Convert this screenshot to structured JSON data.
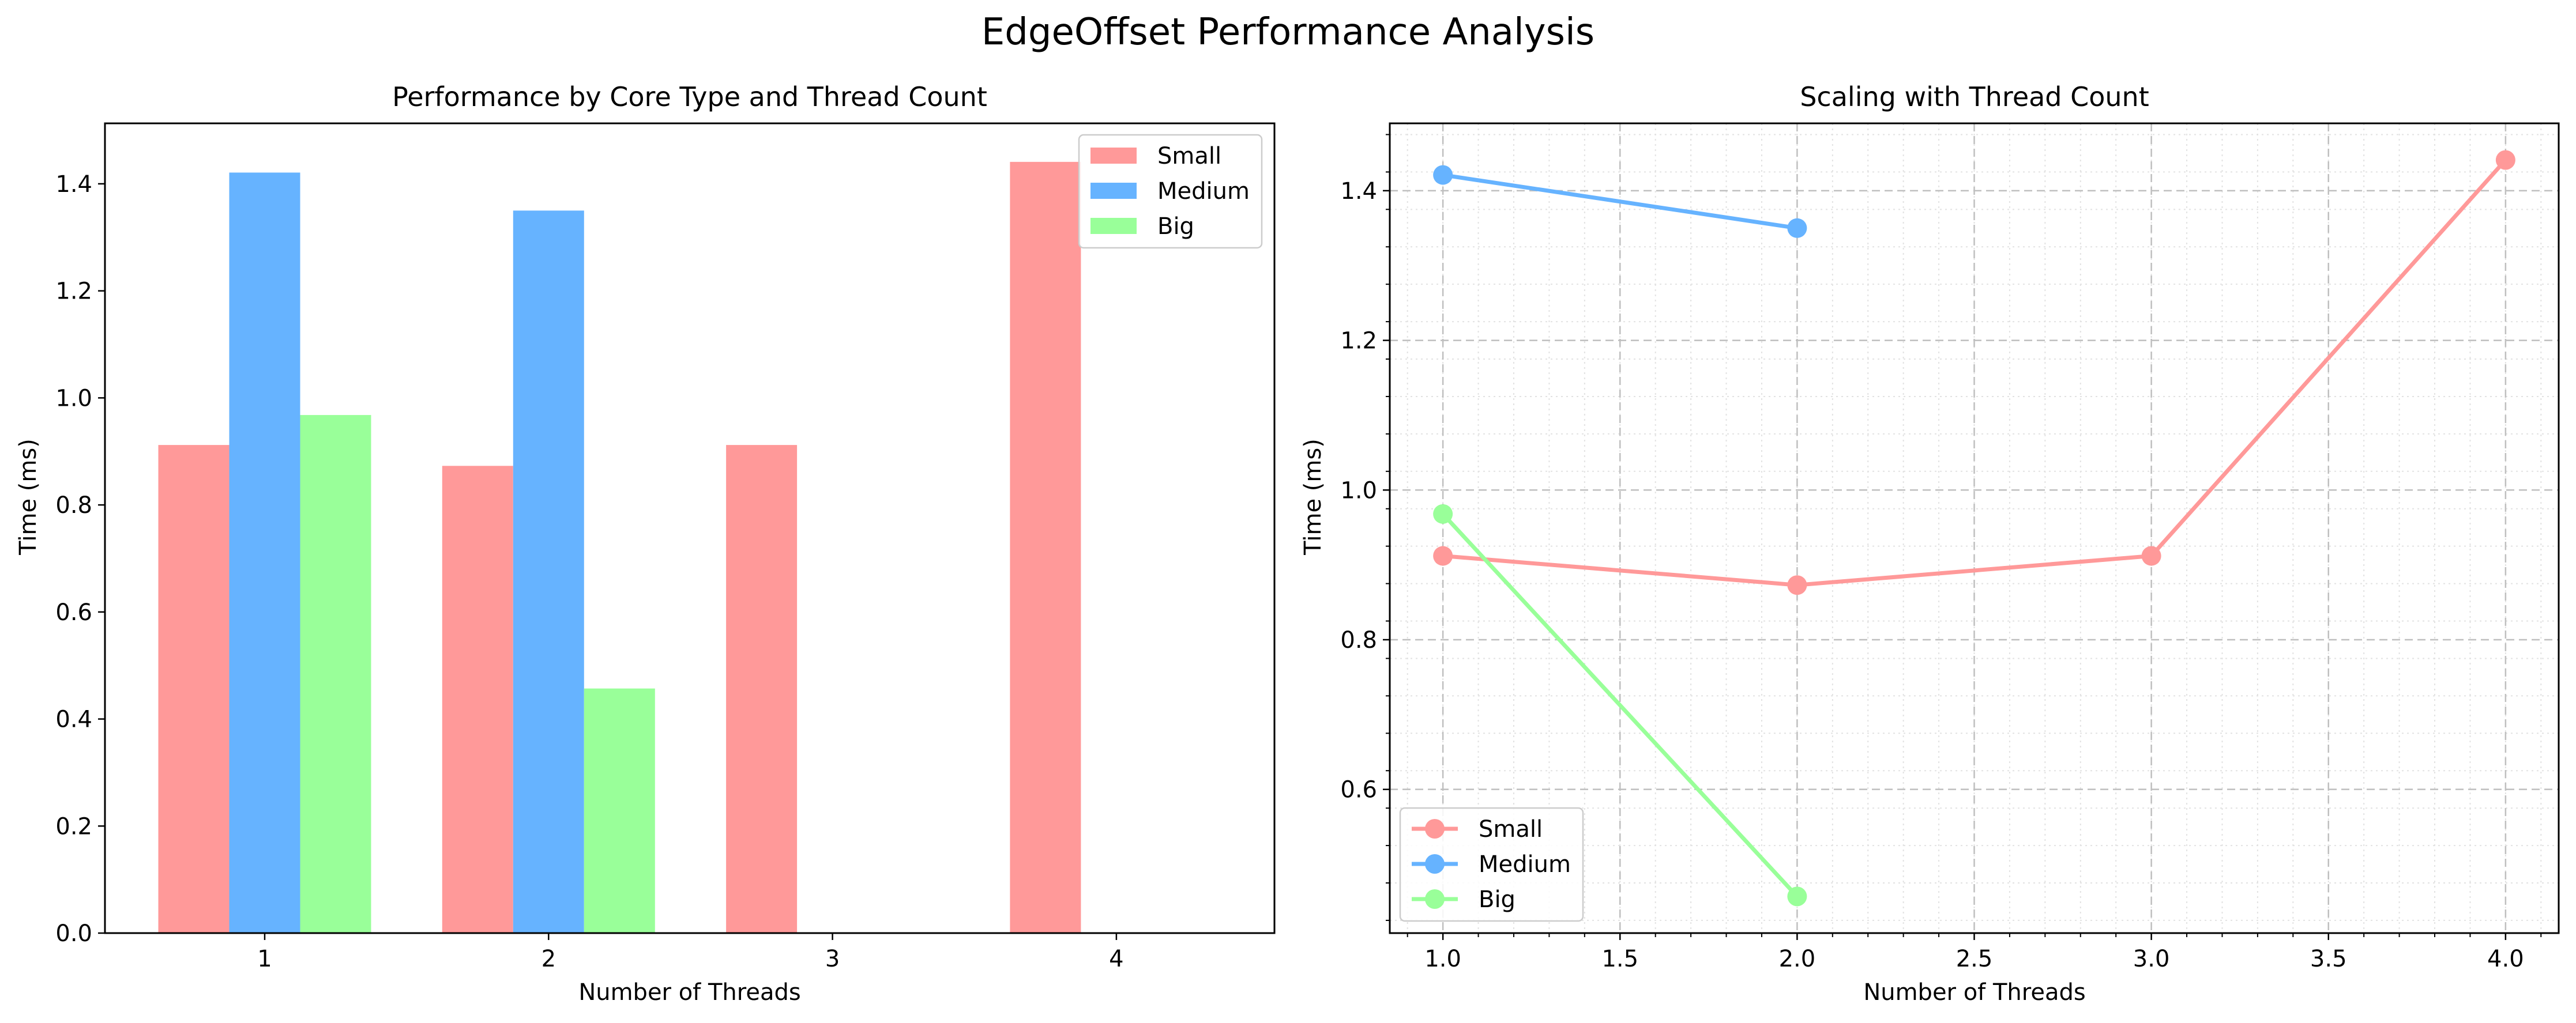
{
  "figure": {
    "title": "EdgeOffset Performance Analysis"
  },
  "chart_data": [
    {
      "type": "bar",
      "title": "Performance by Core Type and Thread Count",
      "xlabel": "Number of Threads",
      "ylabel": "Time (ms)",
      "categories": [
        "1",
        "2",
        "3",
        "4"
      ],
      "series": [
        {
          "name": "Small",
          "color": "#ff9999",
          "values": [
            0.912,
            0.873,
            0.912,
            1.441
          ]
        },
        {
          "name": "Medium",
          "color": "#66b3ff",
          "values": [
            1.421,
            1.35,
            null,
            null
          ]
        },
        {
          "name": "Big",
          "color": "#99ff99",
          "values": [
            0.968,
            0.457,
            null,
            null
          ]
        }
      ],
      "ylim": [
        0,
        1.513
      ],
      "yticks": [
        "0.0",
        "0.2",
        "0.4",
        "0.6",
        "0.8",
        "1.0",
        "1.2",
        "1.4"
      ],
      "grid": false,
      "legend_position": "upper right"
    },
    {
      "type": "line",
      "title": "Scaling with Thread Count",
      "xlabel": "Number of Threads",
      "ylabel": "Time (ms)",
      "series": [
        {
          "name": "Small",
          "color": "#ff9999",
          "x": [
            1,
            2,
            3,
            4
          ],
          "y": [
            0.912,
            0.873,
            0.912,
            1.441
          ]
        },
        {
          "name": "Medium",
          "color": "#66b3ff",
          "x": [
            1,
            2
          ],
          "y": [
            1.421,
            1.35
          ]
        },
        {
          "name": "Big",
          "color": "#99ff99",
          "x": [
            1,
            2
          ],
          "y": [
            0.968,
            0.457
          ]
        }
      ],
      "xlim": [
        0.85,
        4.15
      ],
      "ylim": [
        0.408,
        1.49
      ],
      "xticks": [
        "1.0",
        "1.5",
        "2.0",
        "2.5",
        "3.0",
        "3.5",
        "4.0"
      ],
      "yticks": [
        "0.6",
        "0.8",
        "1.0",
        "1.2",
        "1.4"
      ],
      "grid": true,
      "legend_position": "lower left"
    }
  ]
}
